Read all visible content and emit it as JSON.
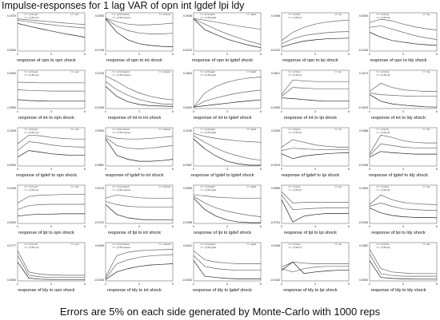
{
  "title": "Impulse-responses for 1 lag VAR of opn int lgdef lpi ldy",
  "footer": "Errors are 5% on each side generated by Monte-Carlo with 1000 reps",
  "chart_data": {
    "type": "line",
    "layout": "5x5 grid",
    "x": [
      0,
      3,
      6
    ],
    "panels": [
      {
        "title": "response of opn to opn shock",
        "ymax": "0.1970",
        "ymin": "0.0000",
        "legend": [
          "(p 5) opn",
          "(p 95) opn",
          "opn"
        ],
        "series": [
          [
            0.96,
            0.93,
            0.9,
            0.87,
            0.84,
            0.81,
            0.79
          ],
          [
            0.92,
            0.87,
            0.82,
            0.78,
            0.74,
            0.71,
            0.68
          ],
          [
            0.82,
            0.74,
            0.66,
            0.59,
            0.52,
            0.46,
            0.4
          ]
        ]
      },
      {
        "title": "response of opn to int shock",
        "ymax": "0.0000",
        "ymin": "-0.0746",
        "legend": [
          "(p 5) interest",
          "(p 95) interest",
          "interest"
        ],
        "series": [
          [
            0.98,
            0.87,
            0.8,
            0.77,
            0.78,
            0.8,
            0.83
          ],
          [
            0.97,
            0.74,
            0.6,
            0.53,
            0.5,
            0.5,
            0.52
          ],
          [
            0.96,
            0.55,
            0.32,
            0.2,
            0.15,
            0.12,
            0.11
          ]
        ]
      },
      {
        "title": "response of opn to lgdef shock",
        "ymax": "0.0045",
        "ymin": "-0.0210",
        "legend": [
          "(p 5) lgdef",
          "(p 95) lgdef",
          "lgdef"
        ],
        "series": [
          [
            0.97,
            0.92,
            0.86,
            0.8,
            0.74,
            0.69,
            0.64
          ],
          [
            0.96,
            0.8,
            0.64,
            0.5,
            0.38,
            0.27,
            0.18
          ],
          [
            0.96,
            0.63,
            0.48,
            0.34,
            0.24,
            0.15,
            0.08
          ]
        ]
      },
      {
        "title": "response of opn to lpi shock",
        "ymax": "0.0496",
        "ymin": "-0.0102",
        "legend": [
          "(p 5) lpi",
          "(p 95) lpi",
          "lpi"
        ],
        "series": [
          [
            0.3,
            0.55,
            0.7,
            0.8,
            0.86,
            0.9,
            0.92
          ],
          [
            0.2,
            0.35,
            0.45,
            0.5,
            0.54,
            0.56,
            0.57
          ],
          [
            0.1,
            0.2,
            0.28,
            0.32,
            0.35,
            0.36,
            0.37
          ]
        ]
      },
      {
        "title": "response of opn to ldy shock",
        "ymax": "0.0300",
        "ymin": "-0.0153",
        "legend": [
          "(p 5) ldy",
          "(p 95) ldy",
          "ldy"
        ],
        "series": [
          [
            0.85,
            0.95,
            0.9,
            0.8,
            0.72,
            0.66,
            0.62
          ],
          [
            0.7,
            0.75,
            0.65,
            0.55,
            0.45,
            0.38,
            0.33
          ],
          [
            0.55,
            0.4,
            0.3,
            0.25,
            0.2,
            0.17,
            0.15
          ]
        ]
      },
      {
        "title": "response of int to opn shock",
        "ymax": "0.0000",
        "ymin": "-1.2960",
        "legend": [
          "(p 5) opn",
          "(p 95) opn",
          "opn"
        ],
        "series": [
          [
            0.78,
            0.77,
            0.76,
            0.76,
            0.76,
            0.76,
            0.76
          ],
          [
            0.55,
            0.53,
            0.52,
            0.51,
            0.51,
            0.51,
            0.51
          ],
          [
            0.25,
            0.22,
            0.21,
            0.2,
            0.2,
            0.2,
            0.2
          ]
        ]
      },
      {
        "title": "response of int to int shock",
        "ymax": "0.3726",
        "ymin": "-0.0328",
        "legend": [
          "(p 5) interest",
          "(p 95) interest",
          "interest"
        ],
        "series": [
          [
            0.97,
            0.8,
            0.6,
            0.45,
            0.35,
            0.28,
            0.24
          ],
          [
            0.8,
            0.55,
            0.38,
            0.25,
            0.17,
            0.12,
            0.1
          ],
          [
            0.65,
            0.35,
            0.18,
            0.1,
            0.06,
            0.05,
            0.04
          ]
        ]
      },
      {
        "title": "response of int to lgdef shock",
        "ymax": "0.2840",
        "ymin": "0.0000",
        "legend": [
          "(p 5) lgdef",
          "(p 95) lgdef",
          "lgdef"
        ],
        "series": [
          [
            0.02,
            0.45,
            0.65,
            0.78,
            0.86,
            0.91,
            0.94
          ],
          [
            0.02,
            0.2,
            0.3,
            0.38,
            0.45,
            0.5,
            0.54
          ],
          [
            0.02,
            0.06,
            0.1,
            0.14,
            0.18,
            0.21,
            0.24
          ]
        ]
      },
      {
        "title": "response of int to lpi shock",
        "ymax": "0.0621",
        "ymin": "-0.2930",
        "legend": [
          "(p 5) lpi",
          "(p 95) lpi",
          "lpi"
        ],
        "series": [
          [
            0.4,
            0.85,
            0.82,
            0.8,
            0.8,
            0.8,
            0.8
          ],
          [
            0.35,
            0.62,
            0.6,
            0.58,
            0.58,
            0.58,
            0.58
          ],
          [
            0.3,
            0.28,
            0.25,
            0.22,
            0.2,
            0.2,
            0.2
          ]
        ]
      },
      {
        "title": "response of int to ldy shock",
        "ymax": "0.4474",
        "ymin": "-0.3915",
        "legend": [
          "(p 5) ldy",
          "(p 95) ldy",
          "ldy"
        ],
        "series": [
          [
            0.5,
            0.75,
            0.62,
            0.55,
            0.52,
            0.5,
            0.5
          ],
          [
            0.45,
            0.4,
            0.38,
            0.36,
            0.35,
            0.35,
            0.35
          ],
          [
            0.4,
            0.2,
            0.12,
            0.08,
            0.05,
            0.03,
            0.02
          ]
        ]
      },
      {
        "title": "response of lgdef to opn shock",
        "ymax": "0.1049",
        "ymin": "0.0000",
        "legend": [
          "(p 5) opn",
          "(p 95) opn",
          "opn"
        ],
        "series": [
          [
            0.65,
            0.92,
            0.9,
            0.85,
            0.82,
            0.8,
            0.8
          ],
          [
            0.45,
            0.72,
            0.68,
            0.62,
            0.58,
            0.56,
            0.55
          ],
          [
            0.25,
            0.45,
            0.4,
            0.35,
            0.32,
            0.3,
            0.3
          ]
        ]
      },
      {
        "title": "response of lgdef to int shock",
        "ymax": "0.0000",
        "ymin": "-0.0862",
        "legend": [
          "(p 5) interest",
          "(p 95) interest",
          "interest"
        ],
        "series": [
          [
            0.9,
            0.82,
            0.8,
            0.8,
            0.82,
            0.85,
            0.88
          ],
          [
            0.85,
            0.6,
            0.52,
            0.5,
            0.52,
            0.56,
            0.6
          ],
          [
            0.8,
            0.3,
            0.18,
            0.12,
            0.12,
            0.14,
            0.18
          ]
        ]
      },
      {
        "title": "response of lgdef to lgdef shock",
        "ymax": "0.2226",
        "ymin": "-0.0387",
        "legend": [
          "(p 5) lgdef",
          "(p 95) lgdef",
          "lgdef"
        ],
        "series": [
          [
            0.97,
            0.88,
            0.82,
            0.78,
            0.74,
            0.72,
            0.7
          ],
          [
            0.9,
            0.7,
            0.52,
            0.38,
            0.28,
            0.2,
            0.15
          ],
          [
            0.8,
            0.5,
            0.28,
            0.12,
            0.04,
            0.0,
            0.0
          ]
        ]
      },
      {
        "title": "response of lgdef to lpi shock",
        "ymax": "0.0250",
        "ymin": "-0.0313",
        "legend": [
          "(p 5) lpi",
          "(p 95) lpi",
          "lpi"
        ],
        "series": [
          [
            0.55,
            0.78,
            0.7,
            0.62,
            0.58,
            0.55,
            0.55
          ],
          [
            0.45,
            0.52,
            0.5,
            0.48,
            0.47,
            0.47,
            0.47
          ],
          [
            0.35,
            0.2,
            0.28,
            0.32,
            0.35,
            0.37,
            0.38
          ]
        ]
      },
      {
        "title": "response of lgdef to ldy shock",
        "ymax": "0.0486",
        "ymin": "-0.0198",
        "legend": [
          "(p 5) ldy",
          "(p 95) ldy",
          "ldy"
        ],
        "series": [
          [
            0.35,
            0.92,
            0.85,
            0.75,
            0.7,
            0.68,
            0.68
          ],
          [
            0.3,
            0.65,
            0.6,
            0.55,
            0.53,
            0.52,
            0.52
          ],
          [
            0.25,
            0.42,
            0.38,
            0.36,
            0.34,
            0.34,
            0.34
          ]
        ]
      },
      {
        "title": "response of lpi to opn shock",
        "ymax": "0.2416",
        "ymin": "0.0000",
        "legend": [
          "(p 5) opn",
          "(p 95) opn",
          "opn"
        ],
        "series": [
          [
            0.6,
            0.8,
            0.84,
            0.85,
            0.86,
            0.86,
            0.86
          ],
          [
            0.4,
            0.52,
            0.55,
            0.56,
            0.56,
            0.56,
            0.56
          ],
          [
            0.2,
            0.24,
            0.26,
            0.26,
            0.27,
            0.27,
            0.27
          ]
        ]
      },
      {
        "title": "response of lpi to int shock",
        "ymax": "0.0213",
        "ymin": "-0.0722",
        "legend": [
          "(p 5) interest",
          "(p 95) interest",
          "interest"
        ],
        "series": [
          [
            0.75,
            0.85,
            0.8,
            0.76,
            0.75,
            0.75,
            0.75
          ],
          [
            0.65,
            0.55,
            0.5,
            0.48,
            0.48,
            0.48,
            0.48
          ],
          [
            0.55,
            0.25,
            0.15,
            0.1,
            0.08,
            0.08,
            0.08
          ]
        ]
      },
      {
        "title": "response of lpi to lgdef shock",
        "ymax": "0.0450",
        "ymin": "-0.2098",
        "legend": [
          "(p 5) lgdef",
          "(p 95) lgdef",
          "lgdef"
        ],
        "series": [
          [
            0.85,
            0.82,
            0.78,
            0.76,
            0.75,
            0.74,
            0.74
          ],
          [
            0.8,
            0.6,
            0.45,
            0.35,
            0.28,
            0.22,
            0.18
          ],
          [
            0.75,
            0.4,
            0.2,
            0.08,
            0.02,
            0.0,
            0.0
          ]
        ]
      },
      {
        "title": "response of lpi to lpi shock",
        "ymax": "0.0585",
        "ymin": "-0.0704",
        "legend": [
          "(p 5) lpi",
          "(p 95) lpi",
          "lpi"
        ],
        "series": [
          [
            0.95,
            0.6,
            0.62,
            0.62,
            0.62,
            0.62,
            0.62
          ],
          [
            0.85,
            0.4,
            0.42,
            0.44,
            0.45,
            0.45,
            0.45
          ],
          [
            0.7,
            0.02,
            0.2,
            0.25,
            0.28,
            0.28,
            0.28
          ]
        ]
      },
      {
        "title": "response of lpi to ldy shock",
        "ymax": "0.1064",
        "ymin": "-0.0328",
        "legend": [
          "(p 5) ldy",
          "(p 95) ldy",
          "ldy"
        ],
        "series": [
          [
            0.55,
            0.85,
            0.7,
            0.62,
            0.58,
            0.56,
            0.55
          ],
          [
            0.5,
            0.6,
            0.5,
            0.42,
            0.4,
            0.38,
            0.38
          ],
          [
            0.45,
            0.3,
            0.22,
            0.18,
            0.16,
            0.16,
            0.15
          ]
        ]
      },
      {
        "title": "response of ldy to opn shock",
        "ymax": "0.0777",
        "ymin": "0.0000",
        "legend": [
          "(p 5) opn",
          "(p 95) opn",
          "opn"
        ],
        "series": [
          [
            0.9,
            0.25,
            0.18,
            0.16,
            0.15,
            0.15,
            0.15
          ],
          [
            0.75,
            0.15,
            0.1,
            0.08,
            0.08,
            0.08,
            0.08
          ],
          [
            0.55,
            0.06,
            0.03,
            0.02,
            0.02,
            0.02,
            0.02
          ]
        ]
      },
      {
        "title": "response of ldy to int shock",
        "ymax": "0.0099",
        "ymin": "-0.0325",
        "legend": [
          "(p 5) interest",
          "(p 95) interest",
          "interest"
        ],
        "series": [
          [
            0.1,
            0.75,
            0.85,
            0.9,
            0.92,
            0.93,
            0.94
          ],
          [
            0.05,
            0.5,
            0.62,
            0.7,
            0.74,
            0.76,
            0.78
          ],
          [
            0.02,
            0.25,
            0.35,
            0.42,
            0.46,
            0.48,
            0.5
          ]
        ]
      },
      {
        "title": "response of ldy to lgdef shock",
        "ymax": "0.0441",
        "ymin": "-0.0403",
        "legend": [
          "(p 5) lgdef",
          "(p 95) lgdef",
          "lgdef"
        ],
        "series": [
          [
            0.9,
            0.62,
            0.55,
            0.52,
            0.5,
            0.5,
            0.5
          ],
          [
            0.75,
            0.42,
            0.35,
            0.32,
            0.3,
            0.3,
            0.3
          ],
          [
            0.6,
            0.12,
            0.08,
            0.05,
            0.04,
            0.04,
            0.04
          ]
        ]
      },
      {
        "title": "response of ldy to lpi shock",
        "ymax": "0.0196",
        "ymin": "-0.0182",
        "legend": [
          "(p 5) lpi",
          "(p 95) lpi",
          "lpi"
        ],
        "series": [
          [
            0.4,
            0.55,
            0.52,
            0.5,
            0.5,
            0.5,
            0.5
          ],
          [
            0.35,
            0.25,
            0.35,
            0.4,
            0.42,
            0.42,
            0.42
          ],
          [
            0.3,
            0.55,
            0.2,
            0.25,
            0.28,
            0.3,
            0.3
          ]
        ]
      },
      {
        "title": "response of ldy to ldy shock",
        "ymax": "0.1082",
        "ymin": "0.0000",
        "legend": [
          "(p 5) ldy",
          "(p 95) ldy",
          "ldy"
        ],
        "series": [
          [
            0.95,
            0.35,
            0.25,
            0.22,
            0.2,
            0.2,
            0.2
          ],
          [
            0.8,
            0.2,
            0.14,
            0.12,
            0.12,
            0.12,
            0.12
          ],
          [
            0.6,
            0.08,
            0.05,
            0.04,
            0.03,
            0.03,
            0.03
          ]
        ]
      }
    ]
  }
}
